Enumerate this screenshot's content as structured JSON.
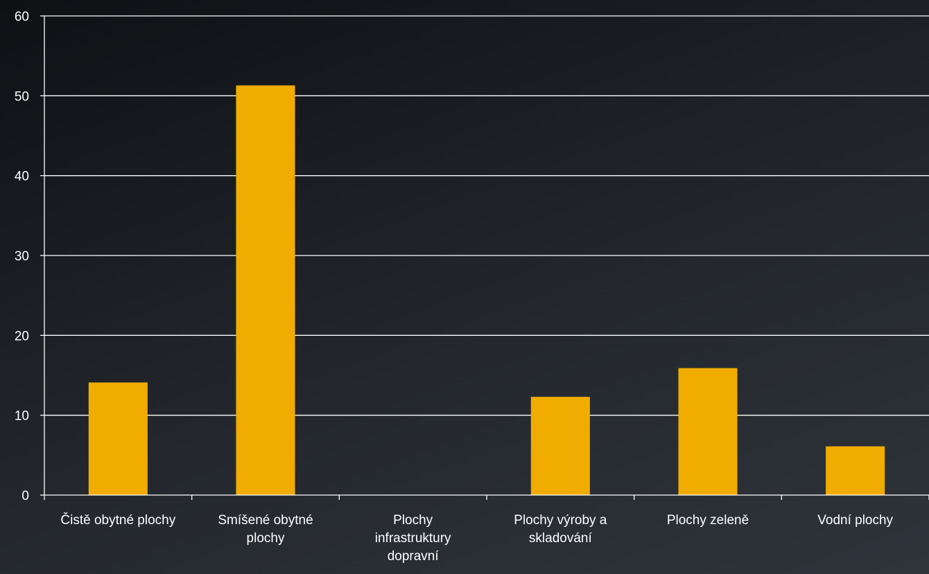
{
  "chart_data": {
    "type": "bar",
    "title": "",
    "xlabel": "",
    "ylabel": "",
    "categories": [
      "Čistě obytné plochy",
      "Smíšené obytné plochy",
      "Plochy infrastruktury dopravní",
      "Plochy výroby a skladování",
      "Plochy zeleně",
      "Vodní plochy"
    ],
    "category_lines": [
      [
        "Čistě obytné plochy"
      ],
      [
        "Smíšené obytné",
        "plochy"
      ],
      [
        "Plochy",
        "infrastruktury",
        "dopravní"
      ],
      [
        "Plochy výroby a",
        "skladování"
      ],
      [
        "Plochy zeleně"
      ],
      [
        "Vodní plochy"
      ]
    ],
    "values": [
      14.1,
      51.3,
      0,
      12.3,
      15.9,
      6.1
    ],
    "ylim": [
      0,
      60
    ],
    "yticks": [
      0,
      10,
      20,
      30,
      40,
      50,
      60
    ],
    "grid": true,
    "legend": "none",
    "colors": {
      "bar": "#f0ac00",
      "grid": "#ffffff",
      "axis": "#ffffff",
      "text": "#ffffff"
    }
  }
}
